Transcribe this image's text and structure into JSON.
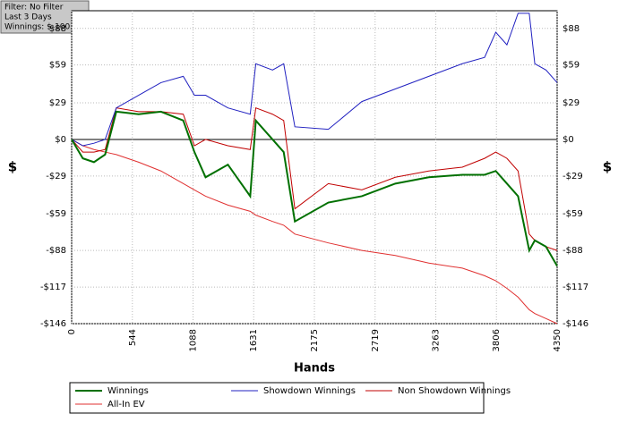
{
  "chart_data": {
    "type": "line",
    "filter_lines": [
      "Filter: No Filter",
      "Last  3 Days",
      "Winnings: $-100.32"
    ],
    "x_label": "Hands",
    "y_label": "$",
    "x": [
      0,
      100,
      200,
      300,
      400,
      600,
      800,
      1000,
      1100,
      1200,
      1400,
      1600,
      1650,
      1800,
      1900,
      2000,
      2300,
      2600,
      2900,
      3200,
      3500,
      3700,
      3800,
      3900,
      4000,
      4100,
      4150,
      4250,
      4350
    ],
    "series": [
      {
        "name": "Winnings",
        "color": "#007000",
        "width": 2,
        "values": [
          0,
          -15,
          -18,
          -12,
          22,
          20,
          22,
          15,
          -10,
          -30,
          -20,
          -45,
          15,
          0,
          -10,
          -65,
          -50,
          -45,
          -35,
          -30,
          -28,
          -28,
          -25,
          -35,
          -45,
          -88,
          -80,
          -85,
          -100.32
        ]
      },
      {
        "name": "Showdown Winnings",
        "color": "#2020c0",
        "width": 1,
        "values": [
          0,
          -5,
          -3,
          0,
          25,
          35,
          45,
          50,
          35,
          35,
          25,
          20,
          60,
          55,
          60,
          10,
          8,
          30,
          40,
          50,
          60,
          65,
          85,
          75,
          100,
          100,
          60,
          55,
          45
        ]
      },
      {
        "name": "Non Showdown Winnings",
        "color": "#c00000",
        "width": 1,
        "values": [
          0,
          -10,
          -10,
          -8,
          25,
          22,
          22,
          20,
          -5,
          0,
          -5,
          -8,
          25,
          20,
          15,
          -55,
          -35,
          -40,
          -30,
          -25,
          -22,
          -15,
          -10,
          -15,
          -25,
          -75,
          -80,
          -85,
          -88
        ]
      },
      {
        "name": "All-In EV",
        "color": "#e03030",
        "width": 1,
        "values": [
          0,
          -5,
          -8,
          -10,
          -12,
          -18,
          -25,
          -35,
          -40,
          -45,
          -52,
          -57,
          -60,
          -65,
          -68,
          -75,
          -82,
          -88,
          -92,
          -98,
          -102,
          -108,
          -112,
          -118,
          -125,
          -135,
          -138,
          -142,
          -146
        ]
      }
    ],
    "xlim": [
      0,
      4350
    ],
    "xticks": [
      0,
      544,
      1088,
      1631,
      2175,
      2719,
      3263,
      3806,
      4350
    ],
    "ylim": [
      -146,
      102
    ],
    "yticks": [
      {
        "value": 88,
        "label": "$88"
      },
      {
        "value": 59,
        "label": "$59"
      },
      {
        "value": 29,
        "label": "$29"
      },
      {
        "value": 0,
        "label": "$0"
      },
      {
        "value": -29,
        "label": "-$29"
      },
      {
        "value": -59,
        "label": "-$59"
      },
      {
        "value": -88,
        "label": "-$88"
      },
      {
        "value": -117,
        "label": "-$117"
      },
      {
        "value": -146,
        "label": "-$146"
      }
    ],
    "grid": true
  }
}
